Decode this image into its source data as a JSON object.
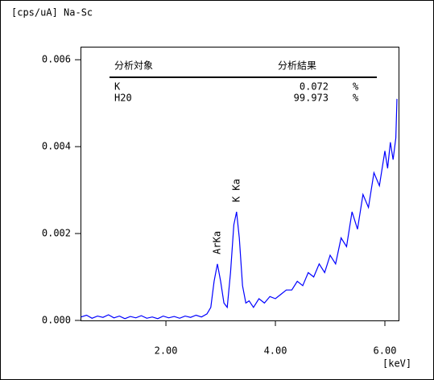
{
  "chart_data": {
    "type": "line",
    "title": "[cps/uA] Na-Sc",
    "x_label": "[keV]",
    "xlim": [
      0.44,
      6.25
    ],
    "ylim": [
      0,
      0.0063
    ],
    "xticks": [
      {
        "value": 2,
        "label": "2.00"
      },
      {
        "value": 4,
        "label": "4.00"
      },
      {
        "value": 6,
        "label": "6.00"
      }
    ],
    "yticks": [
      {
        "value": 0,
        "label": "0.000"
      },
      {
        "value": 0.002,
        "label": "0.002"
      },
      {
        "value": 0.004,
        "label": "0.004"
      },
      {
        "value": 0.006,
        "label": "0.006"
      }
    ],
    "color": "#0000ff",
    "x": [
      0.45,
      0.55,
      0.65,
      0.75,
      0.85,
      0.95,
      1.05,
      1.15,
      1.25,
      1.35,
      1.45,
      1.55,
      1.65,
      1.75,
      1.85,
      1.95,
      2.05,
      2.15,
      2.25,
      2.35,
      2.45,
      2.55,
      2.65,
      2.75,
      2.82,
      2.88,
      2.94,
      3.0,
      3.06,
      3.12,
      3.18,
      3.24,
      3.29,
      3.34,
      3.4,
      3.46,
      3.52,
      3.6,
      3.7,
      3.8,
      3.9,
      4.0,
      4.1,
      4.2,
      4.3,
      4.4,
      4.5,
      4.6,
      4.7,
      4.8,
      4.9,
      5.0,
      5.1,
      5.2,
      5.3,
      5.4,
      5.5,
      5.6,
      5.7,
      5.8,
      5.9,
      6.0,
      6.05,
      6.1,
      6.15,
      6.2,
      6.22
    ],
    "values": [
      8e-05,
      0.00012,
      5e-05,
      0.0001,
      7e-05,
      0.00013,
      6e-05,
      0.0001,
      4e-05,
      9e-05,
      6e-05,
      0.00011,
      5e-05,
      8e-05,
      4e-05,
      0.0001,
      6e-05,
      9e-05,
      5e-05,
      0.0001,
      7e-05,
      0.00012,
      8e-05,
      0.00015,
      0.0003,
      0.0009,
      0.0013,
      0.0009,
      0.0004,
      0.0003,
      0.0011,
      0.0022,
      0.0025,
      0.0019,
      0.0008,
      0.0004,
      0.00045,
      0.0003,
      0.0005,
      0.0004,
      0.00055,
      0.0005,
      0.0006,
      0.0007,
      0.0007,
      0.0009,
      0.0008,
      0.0011,
      0.001,
      0.0013,
      0.0011,
      0.0015,
      0.0013,
      0.0019,
      0.0017,
      0.0025,
      0.0021,
      0.0029,
      0.0026,
      0.0034,
      0.0031,
      0.0039,
      0.0035,
      0.0041,
      0.0037,
      0.0042,
      0.0051
    ],
    "annotations": [
      "ArKa",
      "K Ka"
    ],
    "table": {
      "headers": [
        "分析対象",
        "分析結果"
      ],
      "rows": [
        [
          "K",
          "0.072",
          "%"
        ],
        [
          "H20",
          "99.973",
          "%"
        ]
      ]
    }
  }
}
